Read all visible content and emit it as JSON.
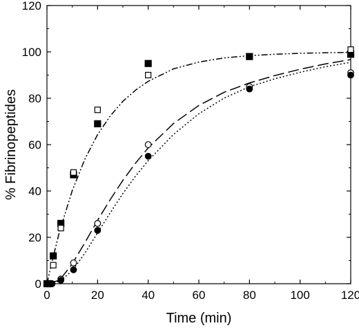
{
  "chart_data": {
    "type": "scatter",
    "xlabel": "Time (min)",
    "ylabel": "% Fibrinopeptides",
    "xlim": [
      0,
      120
    ],
    "ylim": [
      0,
      120
    ],
    "xticks": [
      0,
      20,
      40,
      60,
      80,
      100,
      120
    ],
    "yticks": [
      0,
      20,
      40,
      60,
      80,
      100,
      120
    ],
    "grid": false,
    "series": [
      {
        "marker": "square-filled",
        "x": [
          0,
          1,
          2.5,
          5.5,
          10.5,
          20,
          40,
          80,
          120
        ],
        "y": [
          0,
          0,
          12,
          26,
          47,
          69,
          95,
          98,
          99
        ]
      },
      {
        "marker": "square-open",
        "x": [
          0,
          1,
          2.5,
          5.5,
          10.5,
          20,
          40,
          120
        ],
        "y": [
          0,
          0,
          8,
          24,
          48,
          75,
          90,
          101
        ]
      },
      {
        "marker": "circle-open",
        "x": [
          0,
          2,
          5.5,
          10.5,
          20,
          40,
          80,
          120
        ],
        "y": [
          0,
          0,
          2,
          9,
          26,
          60,
          85,
          91
        ]
      },
      {
        "marker": "circle-filled",
        "x": [
          0,
          2,
          5.5,
          10.5,
          20,
          40,
          80,
          120
        ],
        "y": [
          0,
          0,
          1.5,
          6,
          23,
          55,
          84,
          90
        ]
      }
    ],
    "curves": [
      {
        "style": "dash-dot-dot",
        "x": [
          0,
          2,
          5,
          10,
          15,
          20,
          25,
          30,
          35,
          40,
          50,
          60,
          70,
          80,
          90,
          100,
          110,
          120
        ],
        "y": [
          0,
          9.5,
          22.6,
          40.2,
          53.8,
          64.3,
          72.4,
          78.7,
          83.5,
          87.3,
          92.7,
          95.6,
          97.4,
          98.4,
          99.0,
          99.4,
          99.6,
          99.8
        ]
      },
      {
        "style": "dashed",
        "x": [
          0,
          5,
          10,
          15,
          20,
          25,
          30,
          35,
          40,
          50,
          60,
          70,
          80,
          90,
          100,
          110,
          120
        ],
        "y": [
          0,
          1.5,
          8.6,
          17.7,
          27.3,
          36.3,
          44.6,
          52.0,
          58.6,
          69.1,
          76.9,
          82.6,
          86.6,
          89.8,
          92.5,
          94.8,
          96.7
        ]
      },
      {
        "style": "dotted",
        "x": [
          0,
          5,
          10,
          15,
          20,
          25,
          30,
          35,
          40,
          50,
          60,
          70,
          80,
          90,
          100,
          110,
          120
        ],
        "y": [
          0,
          1.0,
          5.6,
          13.2,
          21.9,
          30.6,
          38.9,
          46.4,
          53.1,
          64.4,
          73.3,
          80.1,
          85.0,
          88.4,
          91.2,
          93.6,
          95.5
        ]
      }
    ]
  }
}
